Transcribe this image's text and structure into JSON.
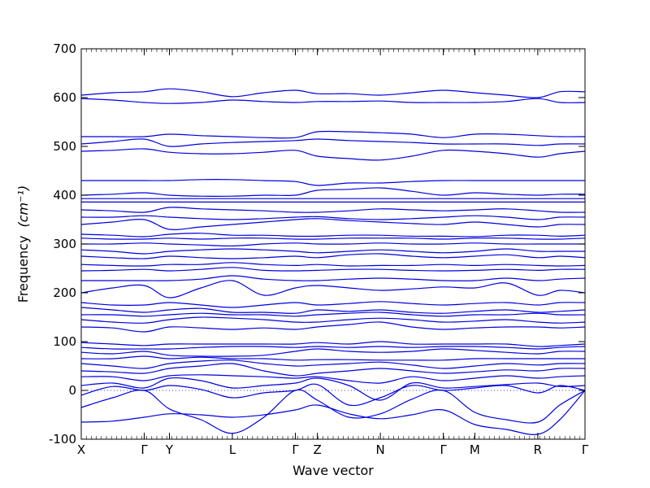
{
  "chart_data": {
    "type": "line",
    "title": "",
    "xlabel": "Wave vector",
    "ylabel": "Frequency",
    "ylabel_unit": "(cm⁻¹)",
    "xlim": [
      0,
      8
    ],
    "ylim": [
      -100,
      700
    ],
    "yticks": [
      -100,
      0,
      100,
      200,
      300,
      400,
      500,
      600,
      700
    ],
    "high_symmetry_points": [
      {
        "label": "X",
        "x": 0
      },
      {
        "label": "Γ",
        "x": 1
      },
      {
        "label": "Y",
        "x": 1.4
      },
      {
        "label": "L",
        "x": 2.4
      },
      {
        "label": "Γ",
        "x": 3.4
      },
      {
        "label": "Z",
        "x": 3.75
      },
      {
        "label": "N",
        "x": 4.75
      },
      {
        "label": "Γ",
        "x": 5.75
      },
      {
        "label": "M",
        "x": 6.25
      },
      {
        "label": "R",
        "x": 7.25
      },
      {
        "label": "Γ",
        "x": 8
      }
    ],
    "zero_line": {
      "y": 0,
      "style": "dotted"
    },
    "grid": false,
    "line_color": "#0000e0",
    "band_sample_x": [
      0,
      0.5,
      1,
      1.4,
      1.9,
      2.4,
      2.9,
      3.4,
      3.75,
      4.25,
      4.75,
      5.25,
      5.75,
      6.25,
      6.75,
      7.25,
      7.6,
      8
    ],
    "series": [
      {
        "values": [
          -65,
          -63,
          -55,
          -48,
          -50,
          -55,
          -50,
          -40,
          -30,
          -48,
          -58,
          -50,
          -40,
          -70,
          -80,
          -90,
          -60,
          0
        ]
      },
      {
        "values": [
          -35,
          -15,
          0,
          -38,
          -60,
          -88,
          -55,
          0,
          -20,
          -55,
          -48,
          -18,
          0,
          -45,
          -60,
          -65,
          -30,
          0
        ]
      },
      {
        "values": [
          -10,
          8,
          0,
          10,
          2,
          -15,
          -5,
          0,
          12,
          -30,
          -15,
          10,
          0,
          5,
          10,
          -5,
          10,
          0
        ]
      },
      {
        "values": [
          10,
          15,
          5,
          25,
          20,
          5,
          10,
          15,
          25,
          10,
          -20,
          15,
          5,
          8,
          12,
          15,
          8,
          10
        ]
      },
      {
        "values": [
          28,
          28,
          20,
          30,
          32,
          30,
          28,
          25,
          28,
          20,
          15,
          28,
          20,
          25,
          30,
          25,
          28,
          30
        ]
      },
      {
        "values": [
          40,
          38,
          35,
          45,
          50,
          55,
          40,
          30,
          35,
          40,
          45,
          40,
          35,
          38,
          42,
          40,
          45,
          45
        ]
      },
      {
        "values": [
          55,
          50,
          45,
          55,
          60,
          62,
          55,
          50,
          52,
          55,
          58,
          52,
          45,
          50,
          55,
          52,
          55,
          55
        ]
      },
      {
        "values": [
          65,
          65,
          70,
          65,
          68,
          65,
          65,
          62,
          63,
          63,
          62,
          62,
          62,
          65,
          65,
          65,
          65,
          65
        ]
      },
      {
        "values": [
          78,
          75,
          80,
          72,
          70,
          70,
          72,
          80,
          85,
          80,
          78,
          80,
          85,
          82,
          78,
          75,
          80,
          80
        ]
      },
      {
        "values": [
          88,
          85,
          85,
          85,
          88,
          90,
          90,
          88,
          90,
          88,
          90,
          88,
          90,
          90,
          88,
          85,
          88,
          90
        ]
      },
      {
        "values": [
          98,
          95,
          92,
          95,
          95,
          95,
          95,
          95,
          98,
          95,
          100,
          95,
          95,
          95,
          95,
          90,
          92,
          95
        ]
      },
      {
        "values": [
          130,
          128,
          120,
          130,
          128,
          125,
          128,
          125,
          130,
          135,
          140,
          130,
          125,
          128,
          130,
          130,
          128,
          130
        ]
      },
      {
        "values": [
          145,
          140,
          138,
          145,
          150,
          148,
          145,
          140,
          140,
          145,
          148,
          145,
          140,
          142,
          145,
          140,
          138,
          140
        ]
      },
      {
        "values": [
          155,
          155,
          152,
          155,
          158,
          155,
          155,
          152,
          155,
          158,
          160,
          155,
          152,
          155,
          155,
          158,
          155,
          155
        ]
      },
      {
        "values": [
          170,
          165,
          160,
          165,
          168,
          160,
          160,
          158,
          165,
          162,
          165,
          160,
          158,
          162,
          165,
          160,
          162,
          165
        ]
      },
      {
        "values": [
          180,
          175,
          175,
          180,
          175,
          170,
          175,
          180,
          175,
          178,
          182,
          178,
          175,
          178,
          180,
          175,
          180,
          180
        ]
      },
      {
        "values": [
          200,
          210,
          215,
          190,
          210,
          225,
          195,
          210,
          215,
          210,
          205,
          208,
          212,
          210,
          220,
          195,
          205,
          200
        ]
      },
      {
        "values": [
          225,
          225,
          225,
          225,
          228,
          235,
          228,
          225,
          225,
          228,
          230,
          228,
          225,
          225,
          230,
          225,
          228,
          230
        ]
      },
      {
        "values": [
          245,
          246,
          248,
          245,
          248,
          252,
          246,
          245,
          246,
          248,
          248,
          246,
          245,
          246,
          248,
          246,
          248,
          248
        ]
      },
      {
        "values": [
          258,
          256,
          255,
          258,
          258,
          262,
          258,
          256,
          258,
          255,
          256,
          256,
          258,
          256,
          258,
          256,
          255,
          256
        ]
      },
      {
        "values": [
          275,
          272,
          270,
          275,
          272,
          270,
          272,
          275,
          272,
          278,
          280,
          275,
          272,
          275,
          278,
          272,
          275,
          272
        ]
      },
      {
        "values": [
          288,
          285,
          280,
          285,
          288,
          290,
          288,
          285,
          282,
          285,
          288,
          285,
          282,
          285,
          290,
          285,
          285,
          285
        ]
      },
      {
        "values": [
          300,
          300,
          302,
          300,
          298,
          296,
          300,
          302,
          300,
          300,
          302,
          300,
          300,
          302,
          300,
          300,
          300,
          300
        ]
      },
      {
        "values": [
          312,
          310,
          310,
          312,
          310,
          312,
          312,
          310,
          310,
          312,
          312,
          312,
          310,
          312,
          312,
          310,
          310,
          312
        ]
      },
      {
        "values": [
          320,
          318,
          315,
          320,
          322,
          318,
          318,
          316,
          316,
          318,
          318,
          316,
          316,
          315,
          318,
          318,
          316,
          318
        ]
      },
      {
        "values": [
          340,
          345,
          350,
          330,
          335,
          340,
          345,
          350,
          352,
          348,
          345,
          342,
          340,
          345,
          340,
          335,
          340,
          340
        ]
      },
      {
        "values": [
          355,
          355,
          358,
          355,
          352,
          350,
          352,
          355,
          356,
          352,
          350,
          352,
          355,
          358,
          355,
          350,
          355,
          355
        ]
      },
      {
        "values": [
          370,
          368,
          365,
          375,
          372,
          370,
          368,
          365,
          365,
          368,
          372,
          370,
          368,
          370,
          372,
          368,
          365,
          365
        ]
      },
      {
        "values": [
          386,
          386,
          386,
          386,
          386,
          386,
          386,
          386,
          386,
          386,
          386,
          386,
          386,
          386,
          386,
          386,
          386,
          386
        ]
      },
      {
        "values": [
          393,
          393,
          393,
          393,
          393,
          393,
          393,
          393,
          393,
          393,
          393,
          393,
          393,
          393,
          393,
          393,
          393,
          393
        ]
      },
      {
        "values": [
          400,
          402,
          405,
          400,
          398,
          398,
          400,
          400,
          410,
          412,
          415,
          408,
          400,
          405,
          402,
          400,
          402,
          402
        ]
      },
      {
        "values": [
          430,
          430,
          430,
          430,
          432,
          432,
          430,
          428,
          420,
          425,
          425,
          428,
          430,
          430,
          430,
          430,
          430,
          430
        ]
      },
      {
        "values": [
          490,
          492,
          495,
          488,
          485,
          485,
          488,
          492,
          480,
          475,
          472,
          480,
          492,
          490,
          485,
          478,
          485,
          490
        ]
      },
      {
        "values": [
          505,
          510,
          515,
          500,
          505,
          508,
          510,
          512,
          515,
          512,
          510,
          508,
          505,
          505,
          505,
          502,
          505,
          505
        ]
      },
      {
        "values": [
          520,
          520,
          520,
          525,
          522,
          520,
          518,
          518,
          530,
          530,
          528,
          525,
          518,
          525,
          525,
          522,
          520,
          520
        ]
      },
      {
        "values": [
          598,
          595,
          590,
          588,
          590,
          595,
          592,
          590,
          592,
          592,
          593,
          590,
          590,
          590,
          592,
          598,
          590,
          590
        ]
      },
      {
        "values": [
          605,
          610,
          612,
          618,
          612,
          602,
          610,
          615,
          608,
          608,
          605,
          610,
          615,
          610,
          605,
          600,
          612,
          612
        ]
      }
    ]
  }
}
